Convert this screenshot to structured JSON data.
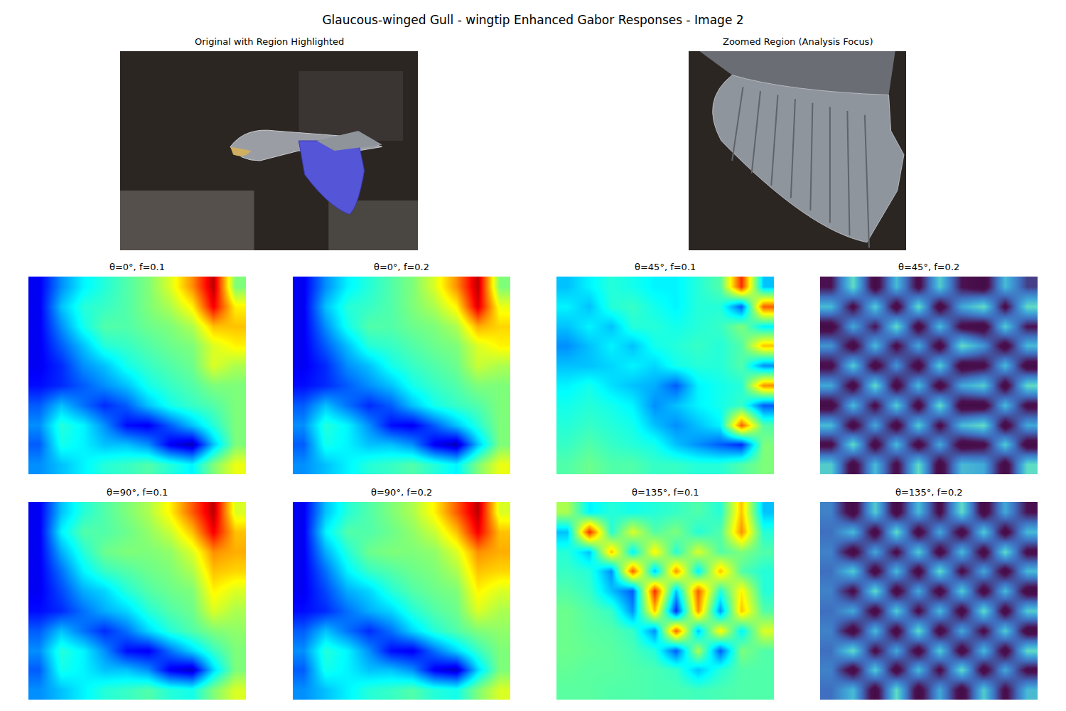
{
  "title": "Glaucous-winged Gull - wingtip Enhanced Gabor Responses - Image 2",
  "images": [
    {
      "title": "Original with Region Highlighted"
    },
    {
      "title": "Zoomed Region (Analysis Focus)"
    }
  ],
  "chart_data": [
    {
      "type": "heatmap",
      "title": "θ=0°, f=0.1",
      "color": "jet",
      "tick_labels": false,
      "zlim": [
        0,
        1
      ],
      "z": [
        [
          0.1,
          0.25,
          0.35,
          0.4,
          0.45,
          0.5,
          0.6,
          0.75,
          0.95,
          0.5
        ],
        [
          0.1,
          0.3,
          0.4,
          0.42,
          0.45,
          0.5,
          0.55,
          0.65,
          0.9,
          0.65
        ],
        [
          0.1,
          0.25,
          0.38,
          0.45,
          0.45,
          0.48,
          0.5,
          0.55,
          0.7,
          0.7
        ],
        [
          0.1,
          0.2,
          0.3,
          0.4,
          0.42,
          0.45,
          0.48,
          0.5,
          0.6,
          0.65
        ],
        [
          0.1,
          0.15,
          0.25,
          0.3,
          0.38,
          0.42,
          0.45,
          0.48,
          0.6,
          0.55
        ],
        [
          0.12,
          0.15,
          0.2,
          0.25,
          0.3,
          0.38,
          0.42,
          0.45,
          0.5,
          0.5
        ],
        [
          0.2,
          0.3,
          0.22,
          0.15,
          0.2,
          0.3,
          0.38,
          0.42,
          0.45,
          0.5
        ],
        [
          0.25,
          0.4,
          0.35,
          0.25,
          0.12,
          0.1,
          0.2,
          0.3,
          0.4,
          0.5
        ],
        [
          0.2,
          0.38,
          0.35,
          0.3,
          0.3,
          0.25,
          0.1,
          0.05,
          0.3,
          0.5
        ],
        [
          0.25,
          0.3,
          0.35,
          0.4,
          0.42,
          0.45,
          0.4,
          0.35,
          0.5,
          0.62
        ]
      ]
    },
    {
      "type": "heatmap",
      "title": "θ=0°, f=0.2",
      "color": "jet",
      "tick_labels": false,
      "zlim": [
        0,
        1
      ],
      "z": [
        [
          0.1,
          0.25,
          0.35,
          0.4,
          0.45,
          0.5,
          0.6,
          0.75,
          0.95,
          0.5
        ],
        [
          0.1,
          0.3,
          0.4,
          0.42,
          0.45,
          0.5,
          0.55,
          0.65,
          0.92,
          0.62
        ],
        [
          0.1,
          0.25,
          0.38,
          0.45,
          0.45,
          0.48,
          0.5,
          0.55,
          0.72,
          0.68
        ],
        [
          0.1,
          0.2,
          0.3,
          0.4,
          0.42,
          0.45,
          0.48,
          0.5,
          0.6,
          0.65
        ],
        [
          0.1,
          0.15,
          0.25,
          0.3,
          0.38,
          0.42,
          0.45,
          0.48,
          0.58,
          0.55
        ],
        [
          0.12,
          0.15,
          0.2,
          0.25,
          0.3,
          0.38,
          0.42,
          0.45,
          0.5,
          0.5
        ],
        [
          0.2,
          0.3,
          0.22,
          0.15,
          0.2,
          0.3,
          0.38,
          0.42,
          0.45,
          0.5
        ],
        [
          0.25,
          0.4,
          0.35,
          0.25,
          0.12,
          0.1,
          0.2,
          0.3,
          0.4,
          0.5
        ],
        [
          0.2,
          0.38,
          0.35,
          0.3,
          0.3,
          0.25,
          0.1,
          0.05,
          0.3,
          0.5
        ],
        [
          0.25,
          0.3,
          0.35,
          0.4,
          0.42,
          0.45,
          0.4,
          0.35,
          0.5,
          0.62
        ]
      ]
    },
    {
      "type": "heatmap",
      "title": "θ=45°, f=0.1",
      "color": "jet",
      "tick_labels": false,
      "zlim": [
        0,
        1
      ],
      "z": [
        [
          0.3,
          0.35,
          0.4,
          0.38,
          0.35,
          0.35,
          0.4,
          0.45,
          0.85,
          0.3
        ],
        [
          0.35,
          0.3,
          0.4,
          0.42,
          0.38,
          0.35,
          0.4,
          0.4,
          0.2,
          0.8
        ],
        [
          0.3,
          0.35,
          0.3,
          0.4,
          0.4,
          0.38,
          0.4,
          0.42,
          0.5,
          0.35
        ],
        [
          0.25,
          0.3,
          0.35,
          0.3,
          0.38,
          0.4,
          0.42,
          0.4,
          0.45,
          0.7
        ],
        [
          0.3,
          0.3,
          0.32,
          0.35,
          0.32,
          0.38,
          0.4,
          0.4,
          0.45,
          0.25
        ],
        [
          0.35,
          0.38,
          0.33,
          0.3,
          0.28,
          0.2,
          0.35,
          0.38,
          0.4,
          0.75
        ],
        [
          0.38,
          0.4,
          0.38,
          0.35,
          0.25,
          0.3,
          0.35,
          0.38,
          0.42,
          0.2
        ],
        [
          0.4,
          0.42,
          0.4,
          0.38,
          0.3,
          0.25,
          0.3,
          0.35,
          0.8,
          0.45
        ],
        [
          0.42,
          0.45,
          0.42,
          0.4,
          0.38,
          0.3,
          0.25,
          0.2,
          0.15,
          0.5
        ],
        [
          0.45,
          0.48,
          0.45,
          0.45,
          0.42,
          0.42,
          0.4,
          0.4,
          0.45,
          0.5
        ]
      ]
    },
    {
      "type": "heatmap",
      "title": "θ=45°, f=0.2",
      "color": "purple",
      "tick_labels": false,
      "zlim": [
        0,
        1
      ],
      "z": [
        [
          0.2,
          0.7,
          0.1,
          0.6,
          0.15,
          0.65,
          0.2,
          0.1,
          0.6,
          0.3
        ],
        [
          0.6,
          0.15,
          0.65,
          0.1,
          0.7,
          0.1,
          0.55,
          0.7,
          0.15,
          0.7
        ],
        [
          0.1,
          0.55,
          0.2,
          0.7,
          0.1,
          0.6,
          0.15,
          0.1,
          0.65,
          0.2
        ],
        [
          0.5,
          0.1,
          0.6,
          0.15,
          0.55,
          0.1,
          0.7,
          0.5,
          0.1,
          0.6
        ],
        [
          0.15,
          0.65,
          0.1,
          0.5,
          0.1,
          0.65,
          0.1,
          0.15,
          0.6,
          0.1
        ],
        [
          0.55,
          0.1,
          0.7,
          0.1,
          0.6,
          0.1,
          0.55,
          0.65,
          0.1,
          0.7
        ],
        [
          0.1,
          0.6,
          0.15,
          0.65,
          0.1,
          0.7,
          0.1,
          0.1,
          0.6,
          0.15
        ],
        [
          0.6,
          0.1,
          0.55,
          0.1,
          0.65,
          0.15,
          0.6,
          0.7,
          0.1,
          0.55
        ],
        [
          0.15,
          0.7,
          0.1,
          0.6,
          0.1,
          0.55,
          0.1,
          0.15,
          0.65,
          0.1
        ],
        [
          0.65,
          0.1,
          0.6,
          0.15,
          0.7,
          0.1,
          0.6,
          0.55,
          0.1,
          0.7
        ]
      ]
    },
    {
      "type": "heatmap",
      "title": "θ=90°, f=0.1",
      "color": "jet",
      "tick_labels": false,
      "zlim": [
        0,
        1
      ],
      "z": [
        [
          0.1,
          0.3,
          0.4,
          0.45,
          0.5,
          0.55,
          0.65,
          0.8,
          0.95,
          0.6
        ],
        [
          0.1,
          0.35,
          0.45,
          0.45,
          0.48,
          0.52,
          0.58,
          0.7,
          0.9,
          0.7
        ],
        [
          0.1,
          0.28,
          0.4,
          0.48,
          0.5,
          0.5,
          0.52,
          0.6,
          0.75,
          0.72
        ],
        [
          0.1,
          0.22,
          0.35,
          0.42,
          0.45,
          0.48,
          0.5,
          0.55,
          0.7,
          0.68
        ],
        [
          0.1,
          0.18,
          0.28,
          0.32,
          0.4,
          0.45,
          0.48,
          0.5,
          0.65,
          0.6
        ],
        [
          0.12,
          0.15,
          0.22,
          0.28,
          0.32,
          0.4,
          0.45,
          0.48,
          0.6,
          0.55
        ],
        [
          0.2,
          0.3,
          0.22,
          0.15,
          0.22,
          0.32,
          0.4,
          0.45,
          0.5,
          0.52
        ],
        [
          0.25,
          0.4,
          0.35,
          0.25,
          0.12,
          0.1,
          0.22,
          0.32,
          0.42,
          0.5
        ],
        [
          0.2,
          0.38,
          0.35,
          0.3,
          0.3,
          0.25,
          0.1,
          0.06,
          0.32,
          0.5
        ],
        [
          0.25,
          0.3,
          0.35,
          0.4,
          0.42,
          0.45,
          0.4,
          0.38,
          0.5,
          0.6
        ]
      ]
    },
    {
      "type": "heatmap",
      "title": "θ=90°, f=0.2",
      "color": "jet",
      "tick_labels": false,
      "zlim": [
        0,
        1
      ],
      "z": [
        [
          0.1,
          0.3,
          0.4,
          0.45,
          0.5,
          0.55,
          0.65,
          0.8,
          0.95,
          0.6
        ],
        [
          0.1,
          0.35,
          0.45,
          0.45,
          0.48,
          0.52,
          0.58,
          0.7,
          0.9,
          0.7
        ],
        [
          0.1,
          0.28,
          0.4,
          0.48,
          0.5,
          0.5,
          0.52,
          0.6,
          0.75,
          0.72
        ],
        [
          0.1,
          0.22,
          0.35,
          0.42,
          0.45,
          0.48,
          0.5,
          0.55,
          0.7,
          0.68
        ],
        [
          0.1,
          0.18,
          0.28,
          0.32,
          0.4,
          0.45,
          0.48,
          0.5,
          0.65,
          0.6
        ],
        [
          0.12,
          0.15,
          0.22,
          0.28,
          0.32,
          0.4,
          0.45,
          0.48,
          0.6,
          0.55
        ],
        [
          0.2,
          0.3,
          0.22,
          0.15,
          0.22,
          0.32,
          0.4,
          0.45,
          0.5,
          0.52
        ],
        [
          0.25,
          0.4,
          0.35,
          0.25,
          0.12,
          0.1,
          0.22,
          0.32,
          0.42,
          0.5
        ],
        [
          0.2,
          0.38,
          0.35,
          0.3,
          0.3,
          0.25,
          0.1,
          0.06,
          0.32,
          0.5
        ],
        [
          0.25,
          0.3,
          0.35,
          0.4,
          0.42,
          0.45,
          0.4,
          0.38,
          0.5,
          0.6
        ]
      ]
    },
    {
      "type": "heatmap",
      "title": "θ=135°, f=0.1",
      "color": "jet",
      "tick_labels": false,
      "zlim": [
        0,
        1
      ],
      "z": [
        [
          0.55,
          0.35,
          0.4,
          0.38,
          0.4,
          0.42,
          0.45,
          0.4,
          0.7,
          0.3
        ],
        [
          0.3,
          0.85,
          0.4,
          0.6,
          0.45,
          0.5,
          0.4,
          0.45,
          0.75,
          0.4
        ],
        [
          0.4,
          0.3,
          0.7,
          0.35,
          0.65,
          0.4,
          0.6,
          0.45,
          0.5,
          0.45
        ],
        [
          0.42,
          0.4,
          0.25,
          0.8,
          0.3,
          0.75,
          0.35,
          0.7,
          0.45,
          0.4
        ],
        [
          0.45,
          0.42,
          0.3,
          0.2,
          0.85,
          0.3,
          0.8,
          0.4,
          0.65,
          0.4
        ],
        [
          0.48,
          0.45,
          0.42,
          0.25,
          0.7,
          0.15,
          0.75,
          0.25,
          0.7,
          0.45
        ],
        [
          0.48,
          0.46,
          0.45,
          0.42,
          0.25,
          0.8,
          0.3,
          0.65,
          0.35,
          0.6
        ],
        [
          0.48,
          0.47,
          0.46,
          0.44,
          0.4,
          0.2,
          0.55,
          0.2,
          0.5,
          0.45
        ],
        [
          0.47,
          0.46,
          0.46,
          0.45,
          0.44,
          0.42,
          0.3,
          0.4,
          0.45,
          0.45
        ],
        [
          0.46,
          0.46,
          0.45,
          0.45,
          0.44,
          0.44,
          0.43,
          0.44,
          0.45,
          0.45
        ]
      ]
    },
    {
      "type": "heatmap",
      "title": "θ=135°, f=0.2",
      "color": "purple",
      "tick_labels": false,
      "zlim": [
        0,
        1
      ],
      "z": [
        [
          0.45,
          0.1,
          0.65,
          0.1,
          0.6,
          0.15,
          0.7,
          0.1,
          0.55,
          0.2
        ],
        [
          0.4,
          0.6,
          0.1,
          0.7,
          0.1,
          0.55,
          0.1,
          0.65,
          0.1,
          0.6
        ],
        [
          0.45,
          0.1,
          0.55,
          0.15,
          0.65,
          0.1,
          0.6,
          0.1,
          0.7,
          0.15
        ],
        [
          0.4,
          0.65,
          0.1,
          0.6,
          0.1,
          0.7,
          0.15,
          0.55,
          0.1,
          0.6
        ],
        [
          0.45,
          0.15,
          0.7,
          0.1,
          0.55,
          0.1,
          0.65,
          0.1,
          0.6,
          0.1
        ],
        [
          0.4,
          0.55,
          0.1,
          0.65,
          0.15,
          0.6,
          0.1,
          0.7,
          0.1,
          0.65
        ],
        [
          0.45,
          0.1,
          0.6,
          0.1,
          0.7,
          0.1,
          0.55,
          0.15,
          0.65,
          0.1
        ],
        [
          0.4,
          0.7,
          0.15,
          0.55,
          0.1,
          0.65,
          0.1,
          0.6,
          0.1,
          0.7
        ],
        [
          0.45,
          0.1,
          0.65,
          0.1,
          0.6,
          0.15,
          0.7,
          0.1,
          0.55,
          0.15
        ],
        [
          0.4,
          0.6,
          0.1,
          0.7,
          0.1,
          0.55,
          0.1,
          0.65,
          0.15,
          0.6
        ]
      ]
    }
  ]
}
